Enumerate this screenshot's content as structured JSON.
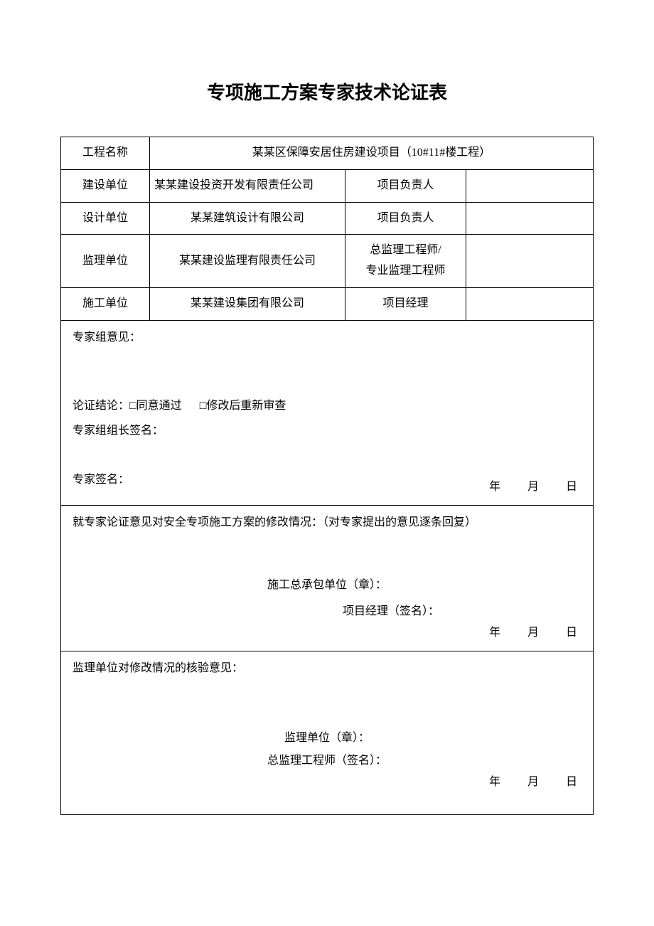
{
  "title": "专项施工方案专家技术论证表",
  "rows": {
    "project_name_label": "工程名称",
    "project_name_value": "某某区保障安居住房建设项目（10#11#楼工程）",
    "builder_label": "建设单位",
    "builder_value": "某某建设投资开发有限责任公司",
    "builder_resp_label": "项目负责人",
    "builder_resp_value": "",
    "designer_label": "设计单位",
    "designer_value": "某某建筑设计有限公司",
    "designer_resp_label": "项目负责人",
    "designer_resp_value": "",
    "supervisor_label": "监理单位",
    "supervisor_value": "某某建设监理有限责任公司",
    "supervisor_resp_label_line1": "总监理工程师/",
    "supervisor_resp_label_line2": "专业监理工程师",
    "supervisor_resp_value": "",
    "constructor_label": "施工单位",
    "constructor_value": "某某建设集团有限公司",
    "constructor_resp_label": "项目经理",
    "constructor_resp_value": ""
  },
  "opinion": {
    "header": "专家组意见：",
    "conclusion_label": "论证结论：",
    "option1": "□同意通过",
    "option2": "□修改后重新审查",
    "leader_sign_label": "专家组组长签名：",
    "expert_sign_label": "专家签名：",
    "date_text": "年  月  日"
  },
  "modification": {
    "header": "就专家论证意见对安全专项施工方案的修改情况：（对专家提出的意见逐条回复）",
    "contractor_stamp": "施工总承包单位（章）：",
    "pm_sign": "项目经理（签名）：",
    "date_text": "年  月  日"
  },
  "verification": {
    "header": "监理单位对修改情况的核验意见：",
    "supervisor_stamp": "监理单位（章）：",
    "supervisor_sign": "总监理工程师（签名）：",
    "date_text": "年  月  日"
  }
}
